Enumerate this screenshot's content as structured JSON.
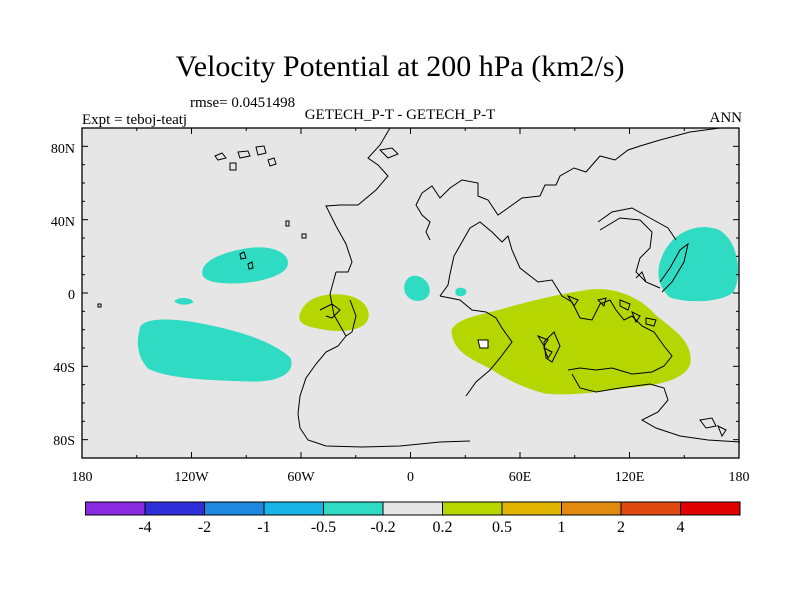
{
  "title": "Velocity Potential at 200 hPa (km2/s)",
  "rmse": "rmse= 0.0451498",
  "experiment": "Expt = teboj-teatj",
  "subtitle": "GETECH_P-T - GETECH_P-T",
  "season": "ANN",
  "map": {
    "lon_labels": [
      "180",
      "120W",
      "60W",
      "0",
      "60E",
      "120E",
      "180"
    ],
    "lat_labels": [
      "80N",
      "40N",
      "0",
      "40S",
      "80S"
    ],
    "background_color": "#e6e6e6",
    "positive_color": "#b5d600",
    "negative_color": "#2fdcc3"
  },
  "colorbar": {
    "colors": [
      "#8a2be2",
      "#2f2fd9",
      "#1e87e0",
      "#19b4e6",
      "#2fdcc3",
      "#e6e6e6",
      "#b5d600",
      "#e0b400",
      "#e08a10",
      "#e04a10",
      "#e00000"
    ],
    "labels": [
      "-4",
      "-2",
      "-1",
      "-0.5",
      "-0.2",
      "0.2",
      "0.5",
      "1",
      "2",
      "4"
    ]
  }
}
